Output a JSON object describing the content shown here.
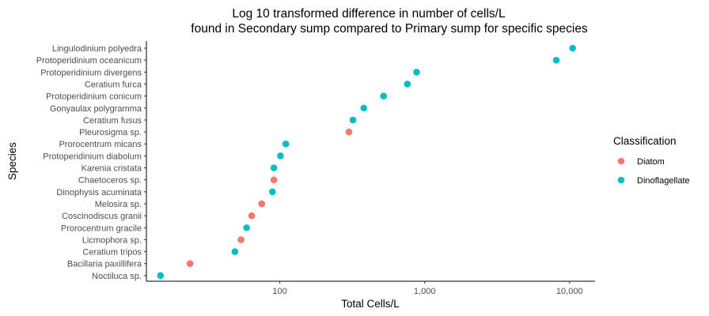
{
  "chart_data": {
    "type": "scatter",
    "title_lines": [
      "Log 10 transformed difference in number of cells/L",
      "found in Secondary sump compared to Primary sump for specific species"
    ],
    "xlabel": "Total Cells/L",
    "ylabel": "Species",
    "x_scale": "log10",
    "xlim": [
      12,
      15000
    ],
    "x_ticks": [
      100,
      1000,
      10000
    ],
    "x_tick_labels": [
      "100",
      "1,000",
      "10,000"
    ],
    "grid": false,
    "legend": {
      "title": "Classification",
      "position": "right",
      "entries": [
        {
          "name": "Diatom",
          "color": "#F8766D"
        },
        {
          "name": "Dinoflagellate",
          "color": "#00BFC4"
        }
      ]
    },
    "categories": [
      "Lingulodinium polyedra",
      "Protoperidinium oceanicum",
      "Protoperidinium divergens",
      "Ceratium furca",
      "Protoperidinium conicum",
      "Gonyaulax polygramma",
      "Ceratium fusus",
      "Pleurosigma sp.",
      "Prorocentrum micans",
      "Protoperidinium diabolum",
      "Karenia cristata",
      "Chaetoceros sp.",
      "Dinophysis acuminata",
      "Melosira sp.",
      "Coscinodiscus granii",
      "Prorocentrum gracile",
      "Licmophora sp.",
      "Ceratium tripos",
      "Bacillaria paxillifera",
      "Noctiluca sp."
    ],
    "points": [
      {
        "species": "Lingulodinium polyedra",
        "x": 10500,
        "class": "Dinoflagellate"
      },
      {
        "species": "Protoperidinium oceanicum",
        "x": 8100,
        "class": "Dinoflagellate"
      },
      {
        "species": "Protoperidinium divergens",
        "x": 880,
        "class": "Dinoflagellate"
      },
      {
        "species": "Ceratium furca",
        "x": 760,
        "class": "Dinoflagellate"
      },
      {
        "species": "Protoperidinium conicum",
        "x": 520,
        "class": "Dinoflagellate"
      },
      {
        "species": "Gonyaulax polygramma",
        "x": 380,
        "class": "Dinoflagellate"
      },
      {
        "species": "Ceratium fusus",
        "x": 320,
        "class": "Dinoflagellate"
      },
      {
        "species": "Pleurosigma sp.",
        "x": 300,
        "class": "Diatom"
      },
      {
        "species": "Prorocentrum micans",
        "x": 110,
        "class": "Dinoflagellate"
      },
      {
        "species": "Protoperidinium diabolum",
        "x": 101,
        "class": "Dinoflagellate"
      },
      {
        "species": "Karenia cristata",
        "x": 91,
        "class": "Dinoflagellate"
      },
      {
        "species": "Chaetoceros sp.",
        "x": 91,
        "class": "Diatom"
      },
      {
        "species": "Dinophysis acuminata",
        "x": 89,
        "class": "Dinoflagellate"
      },
      {
        "species": "Melosira sp.",
        "x": 75,
        "class": "Diatom"
      },
      {
        "species": "Coscinodiscus granii",
        "x": 64,
        "class": "Diatom"
      },
      {
        "species": "Prorocentrum gracile",
        "x": 59,
        "class": "Dinoflagellate"
      },
      {
        "species": "Licmophora sp.",
        "x": 54,
        "class": "Diatom"
      },
      {
        "species": "Ceratium tripos",
        "x": 49,
        "class": "Dinoflagellate"
      },
      {
        "species": "Bacillaria paxillifera",
        "x": 24,
        "class": "Diatom"
      },
      {
        "species": "Noctiluca sp.",
        "x": 15,
        "class": "Dinoflagellate"
      }
    ]
  }
}
